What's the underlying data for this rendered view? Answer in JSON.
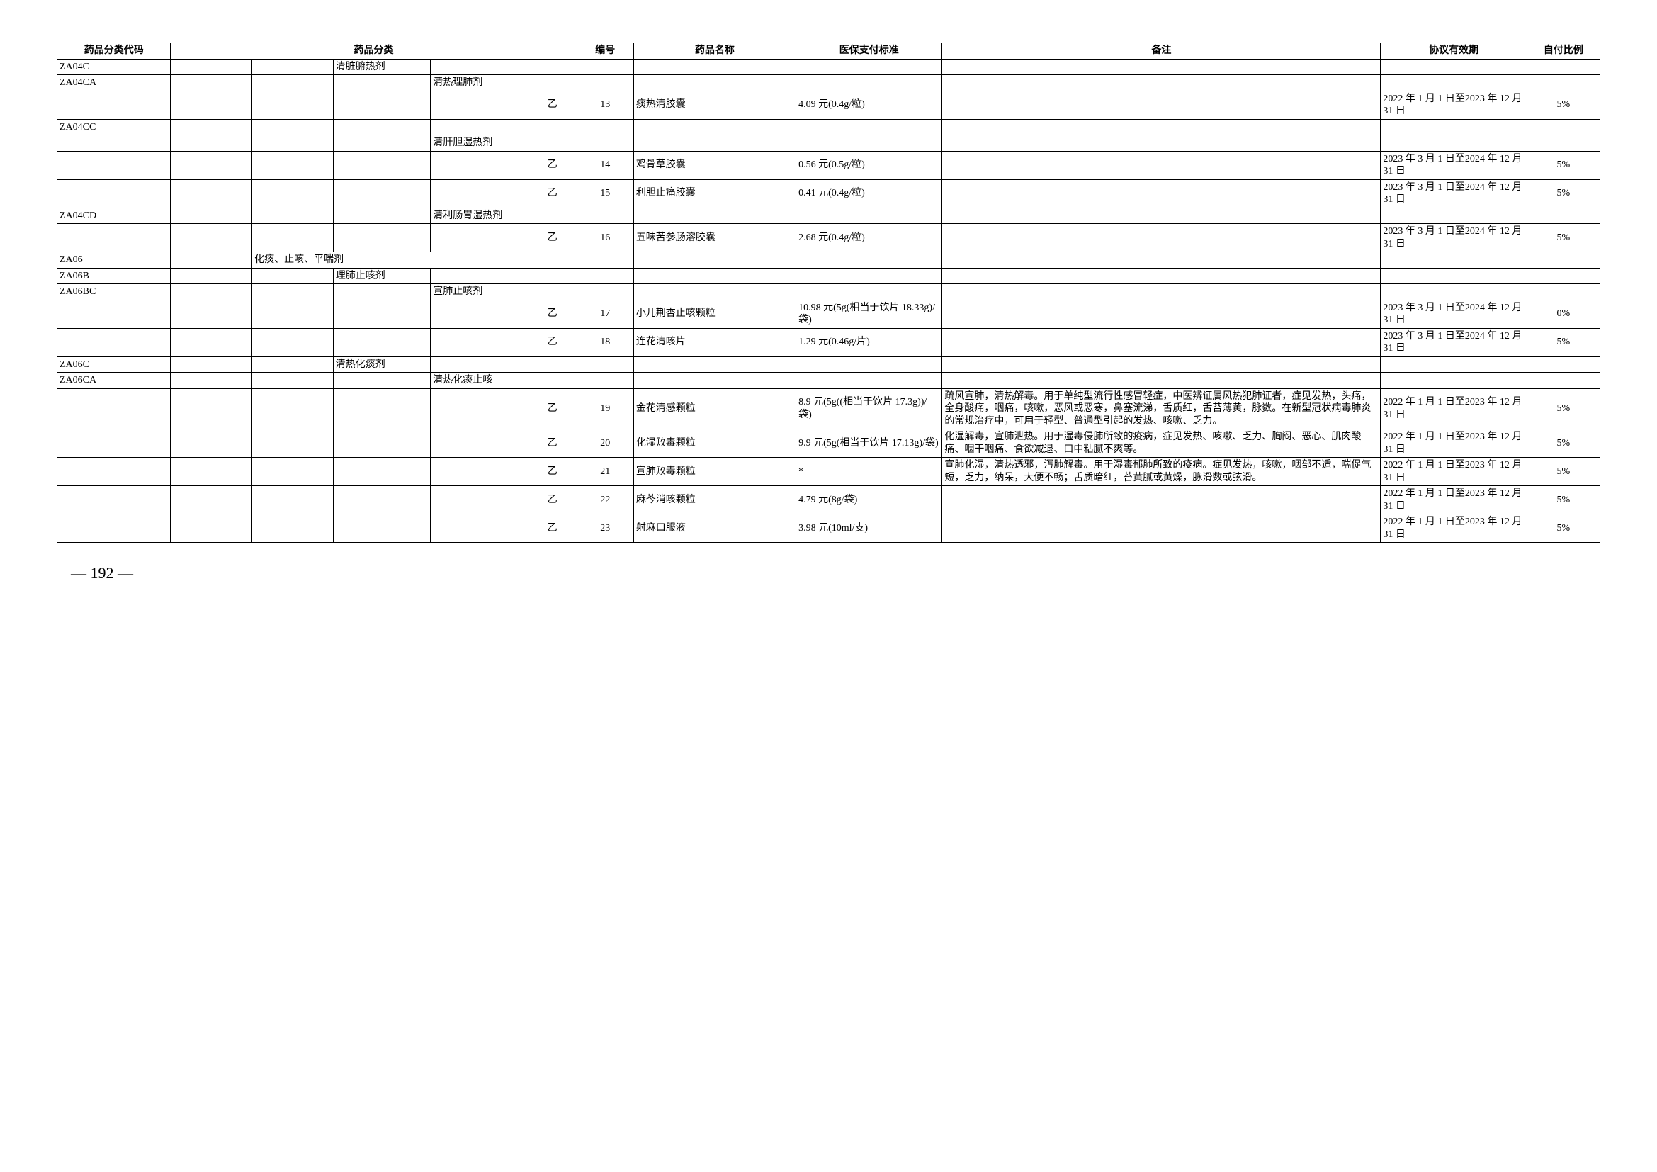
{
  "headers": {
    "code": "药品分类代码",
    "category": "药品分类",
    "no": "编号",
    "name": "药品名称",
    "pay": "医保支付标准",
    "note": "备注",
    "valid": "协议有效期",
    "self": "自付比例"
  },
  "rows": [
    {
      "code": "ZA04C",
      "cat3": "清脏腑热剂"
    },
    {
      "code": "ZA04CA",
      "cat4": "清热理肺剂"
    },
    {
      "cls": "乙",
      "no": "13",
      "name": "痰热清胶囊",
      "pay": "4.09 元(0.4g/粒)",
      "valid": "2022 年 1 月 1 日至2023 年 12 月 31 日",
      "self": "5%"
    },
    {
      "code": "ZA04CC"
    },
    {
      "cat4": "清肝胆湿热剂"
    },
    {
      "cls": "乙",
      "no": "14",
      "name": "鸡骨草胶囊",
      "pay": "0.56 元(0.5g/粒)",
      "valid": "2023 年 3 月 1 日至2024 年 12 月 31 日",
      "self": "5%"
    },
    {
      "cls": "乙",
      "no": "15",
      "name": "利胆止痛胶囊",
      "pay": "0.41 元(0.4g/粒)",
      "valid": "2023 年 3 月 1 日至2024 年 12 月 31 日",
      "self": "5%"
    },
    {
      "code": "ZA04CD",
      "cat4": "清利肠胃湿热剂"
    },
    {
      "cls": "乙",
      "no": "16",
      "name": "五味苦参肠溶胶囊",
      "pay": "2.68 元(0.4g/粒)",
      "valid": "2023 年 3 月 1 日至2024 年 12 月 31 日",
      "self": "5%"
    },
    {
      "code": "ZA06",
      "cat2": "化痰、止咳、平喘剂"
    },
    {
      "code": "ZA06B",
      "cat3": "理肺止咳剂"
    },
    {
      "code": "ZA06BC",
      "cat4": "宣肺止咳剂"
    },
    {
      "cls": "乙",
      "no": "17",
      "name": "小儿荆杏止咳颗粒",
      "pay": "10.98 元(5g(相当于饮片 18.33g)/袋)",
      "valid": "2023 年 3 月 1 日至2024 年 12 月 31 日",
      "self": "0%"
    },
    {
      "cls": "乙",
      "no": "18",
      "name": "连花清咳片",
      "pay": "1.29 元(0.46g/片)",
      "valid": "2023 年 3 月 1 日至2024 年 12 月 31 日",
      "self": "5%"
    },
    {
      "code": "ZA06C",
      "cat3": "清热化痰剂"
    },
    {
      "code": "ZA06CA",
      "cat4": "清热化痰止咳"
    },
    {
      "cls": "乙",
      "no": "19",
      "name": "金花清感颗粒",
      "pay": "8.9 元(5g((相当于饮片 17.3g))/袋)",
      "note": "疏风宣肺，清热解毒。用于单纯型流行性感冒轻症，中医辨证属风热犯肺证者，症见发热，头痛，全身酸痛，咽痛，咳嗽，恶风或恶寒，鼻塞流涕，舌质红，舌苔薄黄，脉数。在新型冠状病毒肺炎的常规治疗中，可用于轻型、普通型引起的发热、咳嗽、乏力。",
      "valid": "2022 年 1 月 1 日至2023 年 12 月 31 日",
      "self": "5%"
    },
    {
      "cls": "乙",
      "no": "20",
      "name": "化湿败毒颗粒",
      "pay": "9.9 元(5g(相当于饮片 17.13g)/袋)",
      "note": "化湿解毒，宣肺泄热。用于湿毒侵肺所致的疫病，症见发热、咳嗽、乏力、胸闷、恶心、肌肉酸痛、咽干咽痛、食欲减退、口中粘腻不爽等。",
      "valid": "2022 年 1 月 1 日至2023 年 12 月 31 日",
      "self": "5%"
    },
    {
      "cls": "乙",
      "no": "21",
      "name": "宣肺败毒颗粒",
      "pay": "*",
      "note": "宣肺化湿，清热透邪，泻肺解毒。用于湿毒郁肺所致的疫病。症见发热，咳嗽，咽部不适，喘促气短，乏力，纳呆，大便不畅；舌质暗红，苔黄腻或黄燥，脉滑数或弦滑。",
      "valid": "2022 年 1 月 1 日至2023 年 12 月 31 日",
      "self": "5%"
    },
    {
      "cls": "乙",
      "no": "22",
      "name": "麻芩消咳颗粒",
      "pay": "4.79 元(8g/袋)",
      "valid": "2022 年 1 月 1 日至2023 年 12 月 31 日",
      "self": "5%"
    },
    {
      "cls": "乙",
      "no": "23",
      "name": "射麻口服液",
      "pay": "3.98 元(10ml/支)",
      "valid": "2022 年 1 月 1 日至2023 年 12 月 31 日",
      "self": "5%"
    }
  ],
  "pageNumber": "— 192 —"
}
